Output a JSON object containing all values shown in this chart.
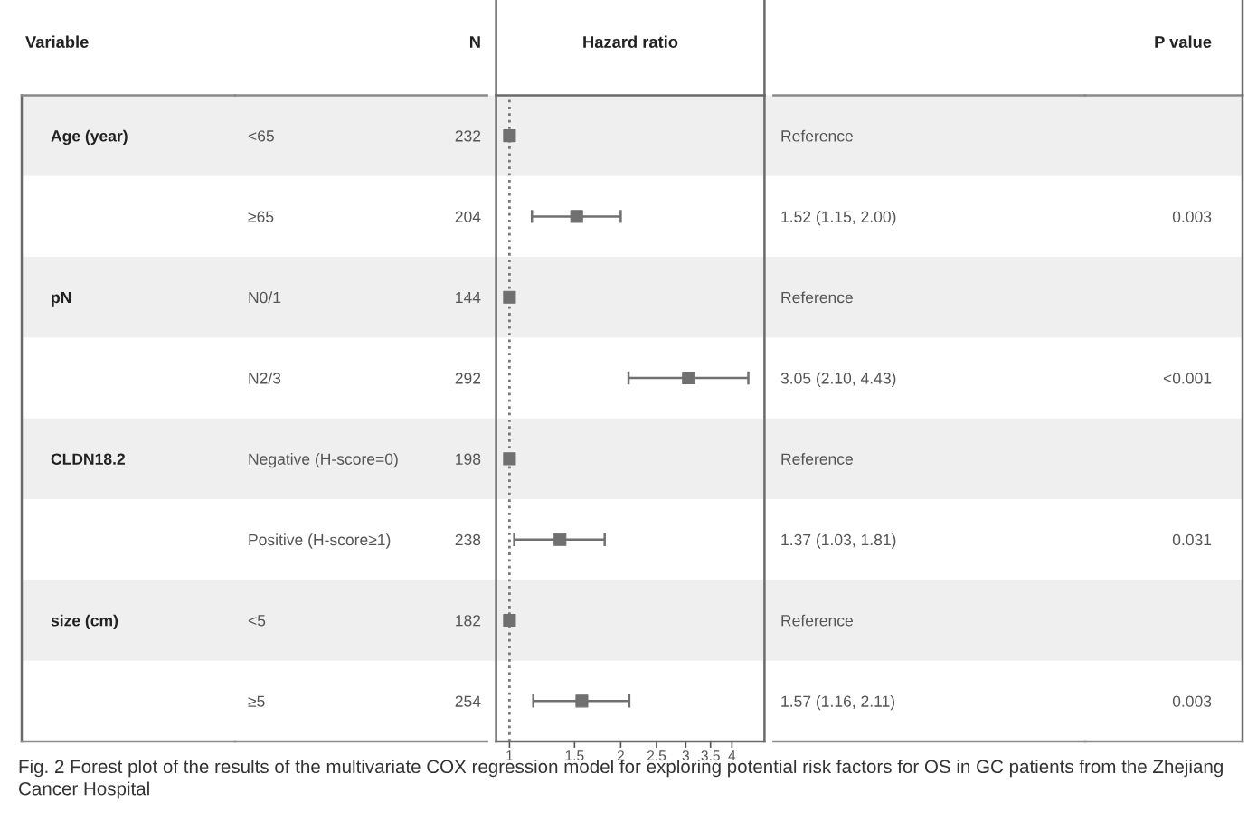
{
  "chart_data": [
    {
      "type": "other",
      "title": "Variable",
      "categories": [
        "Age (year)",
        null,
        "pN",
        null,
        "CLDN18.2",
        null,
        "size (cm)",
        null
      ]
    },
    {
      "type": "other",
      "title": "N",
      "categories": [
        "232",
        "204",
        "144",
        "292",
        "198",
        "238",
        "182",
        "254"
      ]
    },
    {
      "type": "scatter",
      "orientation": "horizontal",
      "xlabel": "Hazard ratio",
      "categories": [
        "<65",
        "≥65",
        "N0/1",
        "N2/3",
        "Negative (H-score=0)",
        "Positive (H-score≥1)",
        "<5",
        "≥5"
      ],
      "values": [
        1,
        1.52,
        1,
        3.05,
        1,
        1.37,
        1,
        1.57
      ],
      "errors": [
        null,
        [
          1.15,
          2.0
        ],
        null,
        [
          2.1,
          4.43
        ],
        null,
        [
          1.03,
          1.81
        ],
        null,
        [
          1.16,
          2.11
        ]
      ],
      "color": "#707070",
      "marker": "square",
      "log": "x",
      "xlim": [
        0.92,
        4.9
      ],
      "xticks": [
        1,
        1.5,
        2,
        2.5,
        3,
        3.5,
        4
      ],
      "ref_lines": [
        {
          "axis": "x",
          "value": 1,
          "line_style": "dotted",
          "color": "#777777"
        }
      ],
      "annotations": [
        "Fig. 2 Forest plot of the results of the multivariate COX regression model for exploring potential risk factors for OS in GC patients from the Zhejiang Cancer Hospital"
      ]
    },
    {
      "type": "other",
      "categories": [
        "Reference",
        "1.52 (1.15, 2.00)",
        "Reference",
        "3.05 (2.10, 4.43)",
        "Reference",
        "1.37 (1.03, 1.81)",
        "Reference",
        "1.57 (1.16, 2.11)"
      ]
    },
    {
      "type": "other",
      "title": "P value",
      "categories": [
        null,
        "0.003",
        null,
        "<0.001",
        null,
        "0.031",
        null,
        "0.003"
      ]
    }
  ]
}
